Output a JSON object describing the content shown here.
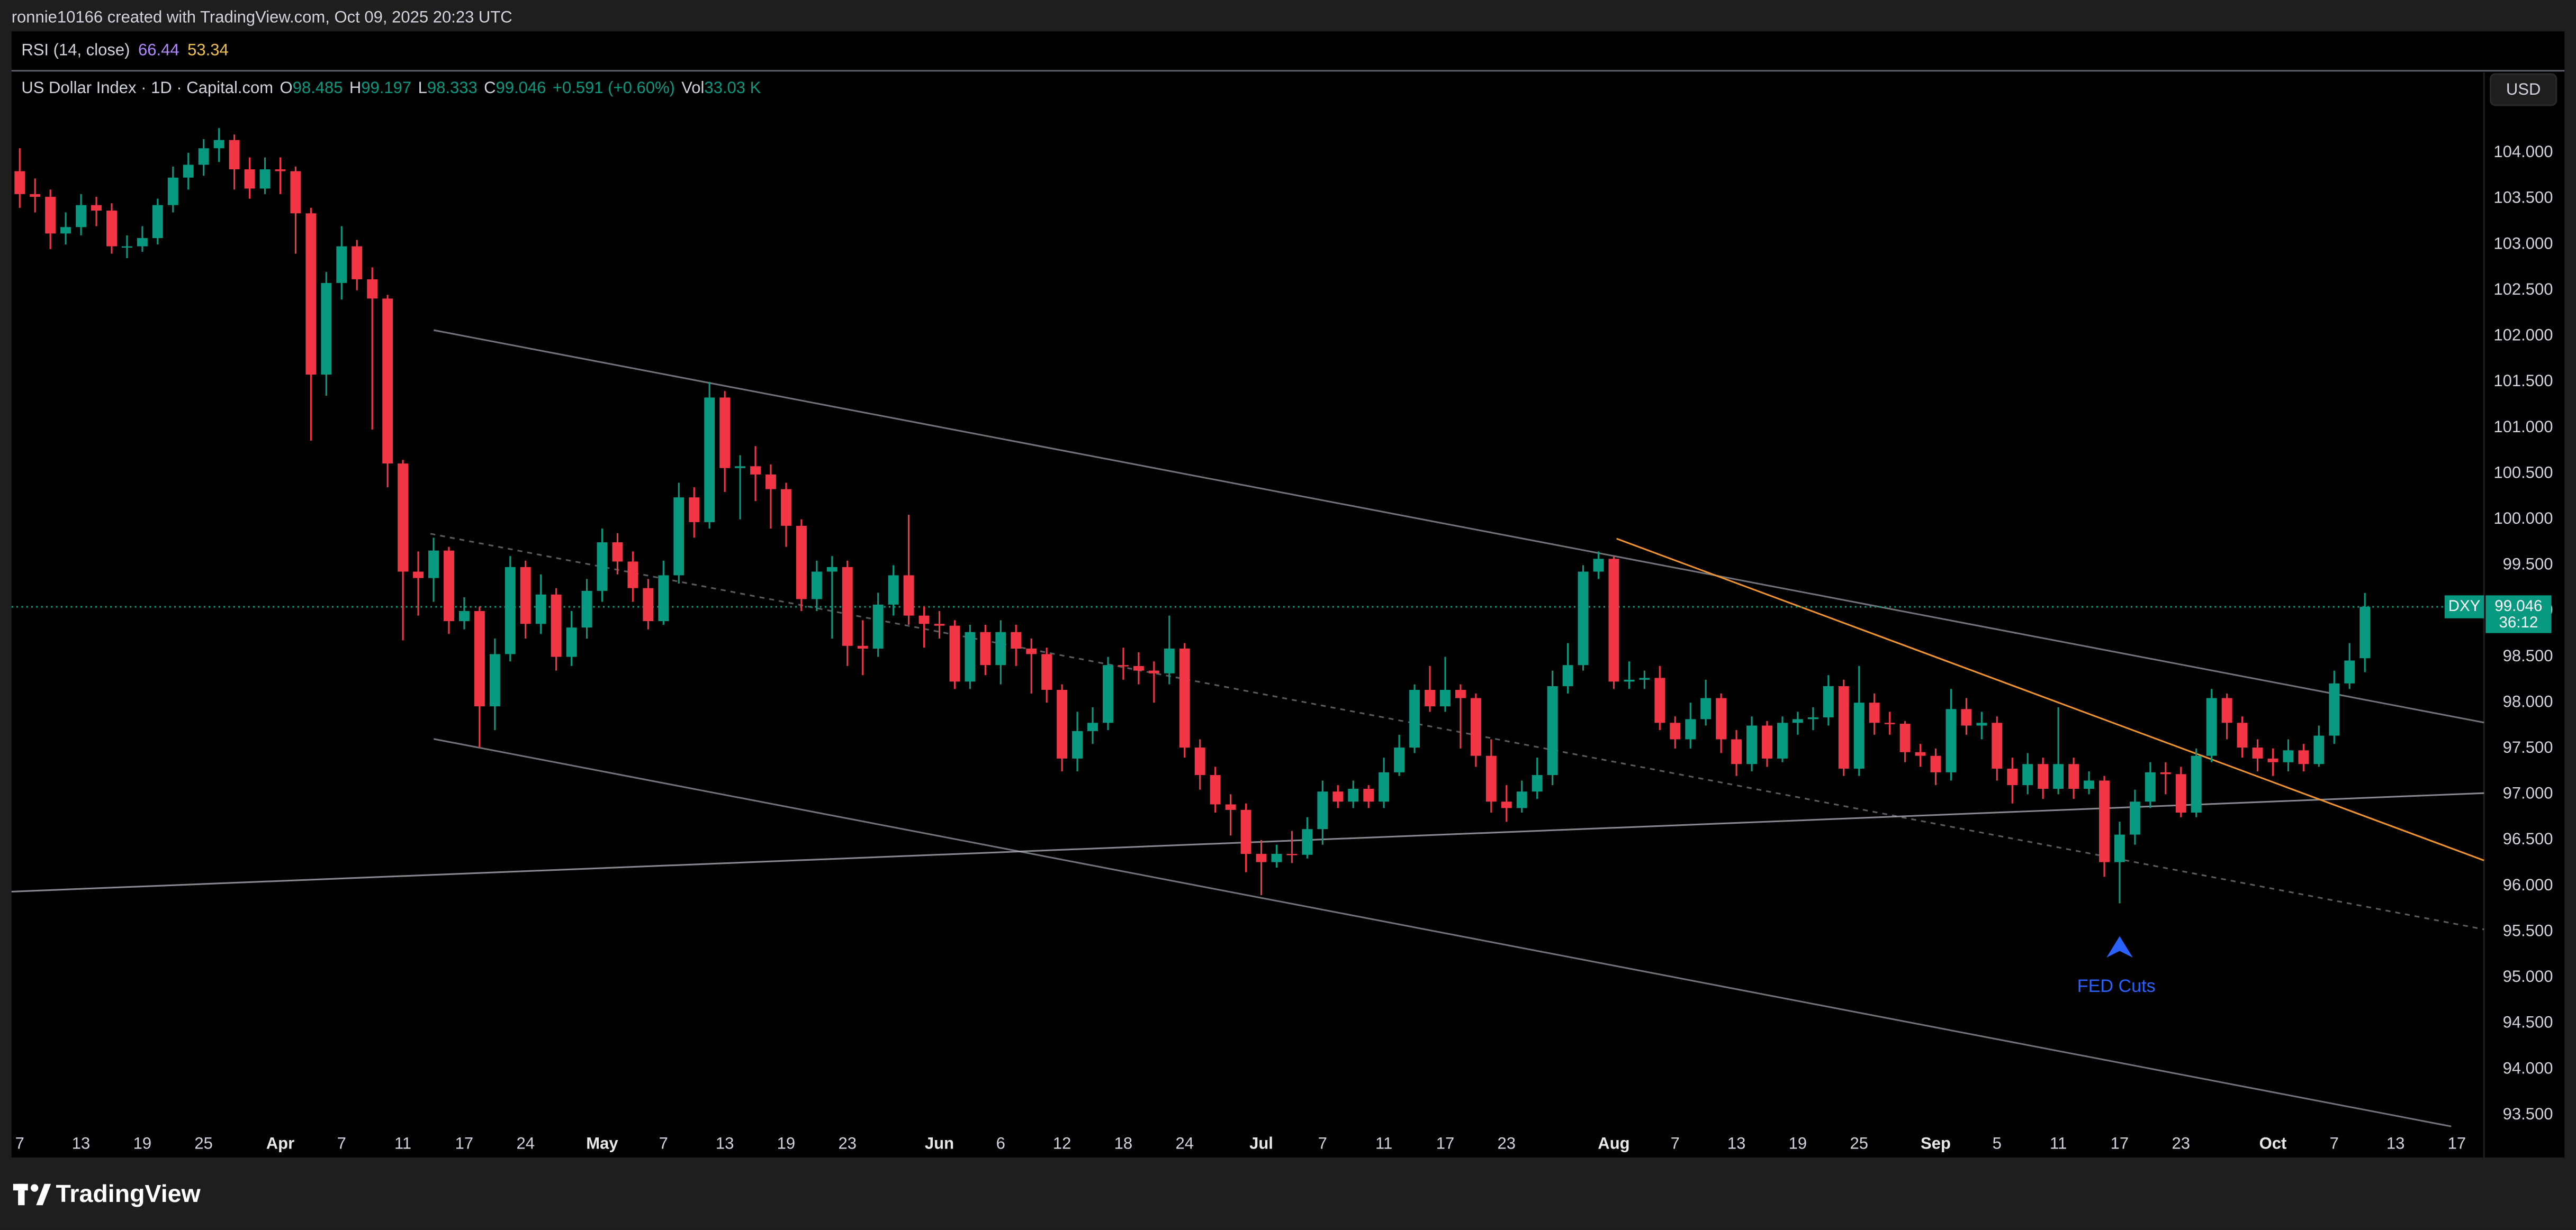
{
  "header": {
    "text": "ronnie10166 created with TradingView.com, Oct 09, 2025 20:23 UTC"
  },
  "rsi_legend": {
    "name": "RSI (14, close)",
    "values": [
      {
        "value": 66.44,
        "color": "#b388ff"
      },
      {
        "value": 53.34,
        "color": "#f0c04c"
      }
    ]
  },
  "legend": {
    "symbol": "US Dollar Index · 1D · Capital.com",
    "value_color": "#089981",
    "items": [
      {
        "key": "O",
        "value": 98.485
      },
      {
        "key": "H",
        "value": 99.197
      },
      {
        "key": "L",
        "value": 98.333
      },
      {
        "key": "C",
        "value": 99.046
      },
      {
        "value": "+0.591 (+0.60%)"
      },
      {
        "key": "Vol",
        "value": "33.03 K"
      }
    ]
  },
  "currency": "USD",
  "footer": {
    "brand": "TradingView"
  },
  "chart_data": {
    "type": "candlestick",
    "up_color": "#089981",
    "down_color": "#f23645",
    "x": [
      "2025-03-07",
      "2025-03-10",
      "2025-03-11",
      "2025-03-12",
      "2025-03-13",
      "2025-03-14",
      "2025-03-17",
      "2025-03-18",
      "2025-03-19",
      "2025-03-20",
      "2025-03-21",
      "2025-03-24",
      "2025-03-25",
      "2025-03-26",
      "2025-03-27",
      "2025-03-28",
      "2025-03-31",
      "2025-04-01",
      "2025-04-02",
      "2025-04-03",
      "2025-04-04",
      "2025-04-07",
      "2025-04-08",
      "2025-04-09",
      "2025-04-10",
      "2025-04-11",
      "2025-04-14",
      "2025-04-15",
      "2025-04-16",
      "2025-04-17",
      "2025-04-21",
      "2025-04-22",
      "2025-04-23",
      "2025-04-24",
      "2025-04-25",
      "2025-04-28",
      "2025-04-29",
      "2025-04-30",
      "2025-05-01",
      "2025-05-02",
      "2025-05-05",
      "2025-05-06",
      "2025-05-07",
      "2025-05-08",
      "2025-05-09",
      "2025-05-12",
      "2025-05-13",
      "2025-05-14",
      "2025-05-15",
      "2025-05-16",
      "2025-05-19",
      "2025-05-20",
      "2025-05-21",
      "2025-05-22",
      "2025-05-23",
      "2025-05-26",
      "2025-05-27",
      "2025-05-28",
      "2025-05-29",
      "2025-05-30",
      "2025-06-02",
      "2025-06-03",
      "2025-06-04",
      "2025-06-05",
      "2025-06-06",
      "2025-06-09",
      "2025-06-10",
      "2025-06-11",
      "2025-06-12",
      "2025-06-13",
      "2025-06-16",
      "2025-06-17",
      "2025-06-18",
      "2025-06-19",
      "2025-06-20",
      "2025-06-23",
      "2025-06-24",
      "2025-06-25",
      "2025-06-26",
      "2025-06-27",
      "2025-06-30",
      "2025-07-01",
      "2025-07-02",
      "2025-07-03",
      "2025-07-04",
      "2025-07-07",
      "2025-07-08",
      "2025-07-09",
      "2025-07-10",
      "2025-07-11",
      "2025-07-14",
      "2025-07-15",
      "2025-07-16",
      "2025-07-17",
      "2025-07-18",
      "2025-07-21",
      "2025-07-22",
      "2025-07-23",
      "2025-07-24",
      "2025-07-25",
      "2025-07-28",
      "2025-07-29",
      "2025-07-30",
      "2025-07-31",
      "2025-08-01",
      "2025-08-04",
      "2025-08-05",
      "2025-08-06",
      "2025-08-07",
      "2025-08-08",
      "2025-08-11",
      "2025-08-12",
      "2025-08-13",
      "2025-08-14",
      "2025-08-15",
      "2025-08-18",
      "2025-08-19",
      "2025-08-20",
      "2025-08-21",
      "2025-08-22",
      "2025-08-25",
      "2025-08-26",
      "2025-08-27",
      "2025-08-28",
      "2025-08-29",
      "2025-09-01",
      "2025-09-02",
      "2025-09-03",
      "2025-09-04",
      "2025-09-05",
      "2025-09-08",
      "2025-09-09",
      "2025-09-10",
      "2025-09-11",
      "2025-09-12",
      "2025-09-15",
      "2025-09-16",
      "2025-09-17",
      "2025-09-18",
      "2025-09-19",
      "2025-09-22",
      "2025-09-23",
      "2025-09-24",
      "2025-09-25",
      "2025-09-26",
      "2025-09-29",
      "2025-09-30",
      "2025-10-01",
      "2025-10-02",
      "2025-10-03",
      "2025-10-06",
      "2025-10-07",
      "2025-10-08",
      "2025-10-09"
    ],
    "open": [
      103.8,
      103.55,
      103.52,
      103.12,
      103.19,
      103.43,
      103.37,
      102.98,
      102.98,
      103.07,
      103.43,
      103.73,
      103.87,
      104.05,
      104.14,
      103.82,
      103.61,
      103.82,
      103.8,
      103.34,
      101.58,
      102.58,
      102.98,
      102.62,
      102.41,
      100.61,
      99.43,
      99.36,
      99.66,
      98.89,
      99.0,
      97.96,
      98.53,
      99.48,
      98.86,
      99.18,
      98.5,
      98.82,
      99.22,
      99.75,
      99.54,
      99.25,
      98.89,
      99.39,
      100.24,
      99.97,
      101.33,
      100.56,
      100.58,
      100.49,
      100.33,
      99.93,
      99.13,
      99.43,
      99.48,
      98.62,
      98.59,
      99.07,
      99.39,
      98.95,
      98.86,
      98.84,
      98.23,
      98.77,
      98.41,
      98.77,
      98.59,
      98.53,
      98.14,
      97.39,
      97.69,
      97.78,
      98.41,
      98.4,
      98.35,
      98.32,
      98.59,
      97.51,
      97.21,
      96.89,
      96.83,
      96.35,
      96.26,
      96.35,
      96.34,
      96.62,
      97.03,
      96.92,
      97.06,
      96.92,
      97.24,
      97.51,
      98.14,
      97.96,
      98.14,
      98.05,
      97.42,
      96.92,
      96.85,
      97.03,
      97.21,
      98.18,
      98.41,
      99.43,
      99.57,
      98.23,
      98.25,
      98.27,
      97.78,
      97.6,
      97.82,
      98.05,
      97.6,
      97.33,
      97.75,
      97.39,
      97.78,
      97.82,
      97.84,
      98.18,
      97.28,
      98.0,
      97.78,
      97.77,
      97.46,
      97.42,
      97.24,
      97.93,
      97.75,
      97.78,
      97.28,
      97.1,
      97.33,
      97.06,
      97.33,
      97.06,
      97.15,
      96.26,
      96.56,
      96.92,
      97.24,
      97.22,
      96.8,
      97.42,
      98.05,
      97.78,
      97.51,
      97.39,
      97.35,
      97.48,
      97.33,
      97.64,
      98.21,
      98.485
    ],
    "high": [
      104.05,
      103.72,
      103.6,
      103.35,
      103.55,
      103.52,
      103.45,
      103.1,
      103.2,
      103.5,
      103.85,
      104.0,
      104.15,
      104.27,
      104.2,
      103.95,
      103.95,
      103.95,
      103.85,
      103.4,
      102.7,
      103.2,
      103.05,
      102.75,
      102.45,
      100.65,
      99.65,
      99.8,
      99.7,
      99.15,
      99.05,
      98.7,
      99.6,
      99.55,
      99.4,
      99.25,
      99.0,
      99.35,
      99.9,
      99.85,
      99.65,
      99.35,
      99.55,
      100.4,
      100.35,
      101.5,
      101.4,
      100.7,
      100.8,
      100.6,
      100.4,
      100.0,
      99.55,
      99.6,
      99.55,
      98.9,
      99.2,
      99.5,
      100.05,
      99.05,
      99.0,
      98.9,
      98.85,
      98.85,
      98.9,
      98.85,
      98.7,
      98.6,
      98.2,
      97.9,
      97.95,
      98.5,
      98.6,
      98.55,
      98.45,
      98.95,
      98.65,
      97.6,
      97.3,
      97.0,
      96.9,
      96.5,
      96.45,
      96.6,
      96.75,
      97.15,
      97.1,
      97.15,
      97.1,
      97.4,
      97.65,
      98.2,
      98.4,
      98.5,
      98.2,
      98.1,
      97.6,
      97.1,
      97.15,
      97.4,
      98.35,
      98.65,
      99.5,
      99.65,
      99.6,
      98.45,
      98.35,
      98.4,
      97.85,
      98.0,
      98.25,
      98.1,
      97.7,
      97.85,
      97.8,
      97.85,
      97.9,
      97.95,
      98.3,
      98.25,
      98.4,
      98.1,
      97.9,
      97.8,
      97.55,
      97.5,
      98.15,
      98.05,
      97.9,
      97.85,
      97.4,
      97.45,
      97.4,
      97.95,
      97.4,
      97.25,
      97.2,
      96.7,
      97.05,
      97.35,
      97.35,
      97.3,
      97.5,
      98.15,
      98.1,
      97.85,
      97.6,
      97.5,
      97.6,
      97.55,
      97.75,
      98.35,
      98.65,
      99.197
    ],
    "low": [
      103.4,
      103.35,
      102.95,
      103.0,
      103.1,
      103.2,
      102.9,
      102.85,
      102.92,
      103.0,
      103.35,
      103.6,
      103.75,
      103.9,
      103.6,
      103.5,
      103.55,
      103.55,
      102.9,
      100.86,
      101.35,
      102.4,
      102.5,
      100.98,
      100.35,
      98.68,
      98.95,
      99.1,
      98.75,
      98.8,
      97.51,
      97.7,
      98.45,
      98.7,
      98.75,
      98.35,
      98.4,
      98.7,
      99.1,
      99.4,
      99.1,
      98.8,
      98.85,
      99.3,
      99.8,
      99.9,
      100.3,
      100.0,
      100.2,
      99.9,
      99.7,
      99.0,
      99.0,
      98.7,
      98.4,
      98.3,
      98.5,
      98.95,
      98.85,
      98.6,
      98.7,
      98.15,
      98.15,
      98.3,
      98.2,
      98.4,
      98.1,
      98.0,
      97.25,
      97.25,
      97.55,
      97.7,
      98.25,
      98.2,
      98.0,
      98.2,
      97.4,
      97.05,
      96.8,
      96.55,
      96.15,
      95.9,
      96.2,
      96.25,
      96.3,
      96.45,
      96.85,
      96.85,
      96.85,
      96.85,
      97.2,
      97.45,
      97.9,
      97.9,
      97.5,
      97.3,
      96.8,
      96.7,
      96.8,
      96.95,
      97.1,
      98.1,
      98.35,
      99.35,
      98.15,
      98.15,
      98.15,
      97.7,
      97.5,
      97.5,
      97.75,
      97.45,
      97.2,
      97.25,
      97.3,
      97.35,
      97.65,
      97.7,
      97.75,
      97.2,
      97.2,
      97.65,
      97.65,
      97.35,
      97.3,
      97.1,
      97.15,
      97.65,
      97.6,
      97.15,
      96.9,
      97.0,
      96.95,
      97.0,
      96.95,
      97.0,
      96.1,
      95.81,
      96.45,
      96.85,
      97.0,
      96.75,
      96.75,
      97.35,
      97.6,
      97.4,
      97.25,
      97.2,
      97.25,
      97.25,
      97.3,
      97.55,
      98.15,
      98.333
    ],
    "close": [
      103.55,
      103.52,
      103.12,
      103.19,
      103.43,
      103.37,
      102.98,
      102.98,
      103.07,
      103.43,
      103.73,
      103.87,
      104.05,
      104.14,
      103.82,
      103.61,
      103.82,
      103.8,
      103.34,
      101.58,
      102.58,
      102.98,
      102.62,
      102.41,
      100.61,
      99.43,
      99.36,
      99.66,
      98.89,
      99.0,
      97.96,
      98.53,
      99.48,
      98.86,
      99.18,
      98.5,
      98.82,
      99.22,
      99.75,
      99.54,
      99.25,
      98.89,
      99.39,
      100.24,
      99.97,
      101.33,
      100.56,
      100.58,
      100.49,
      100.33,
      99.93,
      99.13,
      99.43,
      99.48,
      98.62,
      98.59,
      99.07,
      99.39,
      98.95,
      98.86,
      98.84,
      98.23,
      98.77,
      98.41,
      98.77,
      98.59,
      98.53,
      98.14,
      97.39,
      97.69,
      97.78,
      98.41,
      98.4,
      98.35,
      98.32,
      98.59,
      97.51,
      97.21,
      96.89,
      96.83,
      96.35,
      96.26,
      96.35,
      96.34,
      96.62,
      97.03,
      96.92,
      97.06,
      96.92,
      97.24,
      97.51,
      98.14,
      97.96,
      98.14,
      98.05,
      97.42,
      96.92,
      96.85,
      97.03,
      97.21,
      98.18,
      98.41,
      99.43,
      99.57,
      98.23,
      98.25,
      98.27,
      97.78,
      97.6,
      97.82,
      98.05,
      97.6,
      97.33,
      97.75,
      97.39,
      97.78,
      97.82,
      97.84,
      98.18,
      97.28,
      98.0,
      97.78,
      97.77,
      97.46,
      97.42,
      97.24,
      97.93,
      97.75,
      97.78,
      97.28,
      97.1,
      97.33,
      97.06,
      97.33,
      97.06,
      97.15,
      96.26,
      96.56,
      96.92,
      97.24,
      97.22,
      96.8,
      97.42,
      98.05,
      97.78,
      97.51,
      97.39,
      97.35,
      97.48,
      97.33,
      97.64,
      98.21,
      98.46,
      99.046
    ],
    "ylim": [
      93.34,
      104.86
    ],
    "yticks": [
      {
        "value": 93.5,
        "label": "93.500"
      },
      {
        "value": 94,
        "label": "94.000"
      },
      {
        "value": 94.5,
        "label": "94.500"
      },
      {
        "value": 95,
        "label": "95.000"
      },
      {
        "value": 95.5,
        "label": "95.500"
      },
      {
        "value": 96,
        "label": "96.000"
      },
      {
        "value": 96.5,
        "label": "96.500"
      },
      {
        "value": 97,
        "label": "97.000"
      },
      {
        "value": 97.5,
        "label": "97.500"
      },
      {
        "value": 98,
        "label": "98.000"
      },
      {
        "value": 98.5,
        "label": "98.500"
      },
      {
        "value": 99,
        "label": "99.000"
      },
      {
        "value": 99.5,
        "label": "99.500"
      },
      {
        "value": 100,
        "label": "100.000"
      },
      {
        "value": 100.5,
        "label": "100.500"
      },
      {
        "value": 101,
        "label": "101.000"
      },
      {
        "value": 101.5,
        "label": "101.500"
      },
      {
        "value": 102,
        "label": "102.000"
      },
      {
        "value": 102.5,
        "label": "102.500"
      },
      {
        "value": 103,
        "label": "103.000"
      },
      {
        "value": 103.5,
        "label": "103.500"
      },
      {
        "value": 104,
        "label": "104.000"
      }
    ],
    "xticks": [
      {
        "value": "2025-03-07",
        "label": "7"
      },
      {
        "value": "2025-03-13",
        "label": "13"
      },
      {
        "value": "2025-03-19",
        "label": "19"
      },
      {
        "value": "2025-03-25",
        "label": "25"
      },
      {
        "value": "2025-04-01",
        "label": "Apr"
      },
      {
        "value": "2025-04-07",
        "label": "7"
      },
      {
        "value": "2025-04-11",
        "label": "11"
      },
      {
        "value": "2025-04-17",
        "label": "17"
      },
      {
        "value": "2025-04-24",
        "label": "24"
      },
      {
        "value": "2025-05-01",
        "label": "May"
      },
      {
        "value": "2025-05-07",
        "label": "7"
      },
      {
        "value": "2025-05-13",
        "label": "13"
      },
      {
        "value": "2025-05-19",
        "label": "19"
      },
      {
        "value": "2025-05-23",
        "label": "23"
      },
      {
        "value": "2025-06-02",
        "label": "Jun"
      },
      {
        "value": "2025-06-06",
        "label": "6"
      },
      {
        "value": "2025-06-12",
        "label": "12"
      },
      {
        "value": "2025-06-18",
        "label": "18"
      },
      {
        "value": "2025-06-24",
        "label": "24"
      },
      {
        "value": "2025-07-01",
        "label": "Jul"
      },
      {
        "value": "2025-07-07",
        "label": "7"
      },
      {
        "value": "2025-07-11",
        "label": "11"
      },
      {
        "value": "2025-07-17",
        "label": "17"
      },
      {
        "value": "2025-07-23",
        "label": "23"
      },
      {
        "value": "2025-08-01",
        "label": "Aug"
      },
      {
        "value": "2025-08-07",
        "label": "7"
      },
      {
        "value": "2025-08-13",
        "label": "13"
      },
      {
        "value": "2025-08-19",
        "label": "19"
      },
      {
        "value": "2025-08-25",
        "label": "25"
      },
      {
        "value": "2025-09-01",
        "label": "Sep"
      },
      {
        "value": "2025-09-05",
        "label": "5"
      },
      {
        "value": "2025-09-11",
        "label": "11"
      },
      {
        "value": "2025-09-17",
        "label": "17"
      },
      {
        "value": "2025-09-23",
        "label": "23"
      },
      {
        "value": "2025-10-01",
        "label": "Oct"
      },
      {
        "value": "2025-10-07",
        "label": "7"
      },
      {
        "value": "2025-10-13",
        "label": "13"
      },
      {
        "value": "2025-10-17",
        "label": "17"
      }
    ],
    "last_price": {
      "name": "DXY",
      "value": 99.046,
      "countdown": "36:12",
      "color": "#089981"
    },
    "annotations": [
      {
        "text": "FED Cuts",
        "x": "2025-09-17",
        "color": "#2962ff"
      }
    ]
  }
}
